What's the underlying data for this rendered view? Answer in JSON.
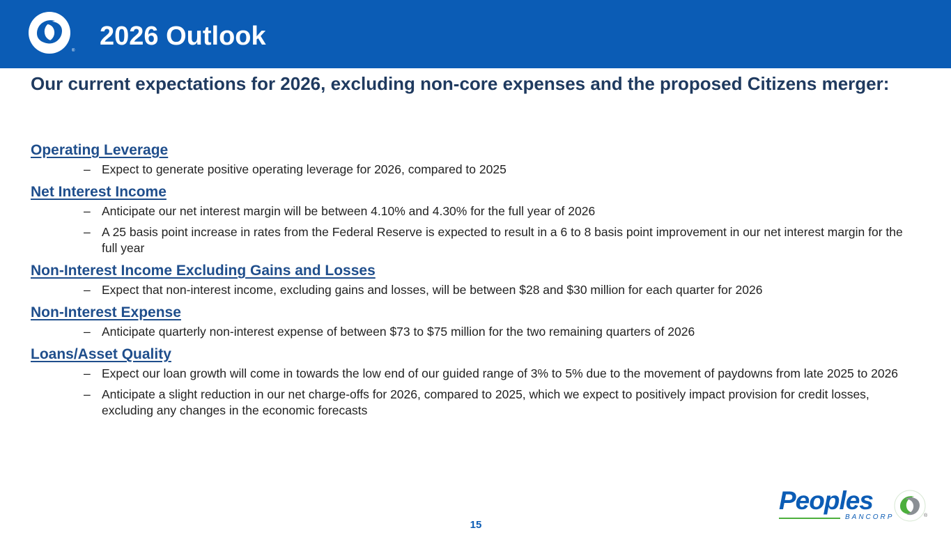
{
  "header": {
    "title": "2026 Outlook",
    "background_color": "#0b5cb5",
    "logo_icon": "peoples-swirl-logo"
  },
  "subtitle": "Our current expectations for 2026, excluding non-core expenses and the proposed Citizens merger:",
  "sections": [
    {
      "heading": "Operating Leverage",
      "bullets": [
        "Expect to generate positive operating leverage for 2026, compared to 2025"
      ]
    },
    {
      "heading": "Net Interest Income",
      "bullets": [
        "Anticipate our net interest margin will be between 4.10% and 4.30% for the full year of 2026",
        "A 25 basis point increase in rates from the Federal Reserve is expected to result in a 6 to 8 basis point improvement in our net interest margin for the full year"
      ]
    },
    {
      "heading": "Non-Interest Income Excluding Gains and Losses",
      "bullets": [
        "Expect that non-interest income, excluding gains and losses, will be between $28 and $30 million for each quarter for 2026"
      ]
    },
    {
      "heading": "Non-Interest Expense",
      "bullets": [
        "Anticipate quarterly non-interest expense of between $73 to $75 million for the two remaining quarters of 2026"
      ]
    },
    {
      "heading": "Loans/Asset Quality",
      "bullets": [
        "Expect our loan growth will come in towards the low end of our guided range of 3% to 5% due to the movement of paydowns from late 2025 to 2026",
        "Anticipate a slight reduction in our net charge-offs for 2026, compared to 2025, which we expect to positively impact provision for credit losses, excluding any changes in the economic forecasts"
      ]
    }
  ],
  "bullet_marker": "–",
  "page_number": "15",
  "brand": {
    "name": "Peoples",
    "sub": "BANCORP",
    "registered": "®",
    "primary_color": "#0b5cb5",
    "accent_color": "#4caf3c",
    "icon": "peoples-swirl-logo"
  }
}
